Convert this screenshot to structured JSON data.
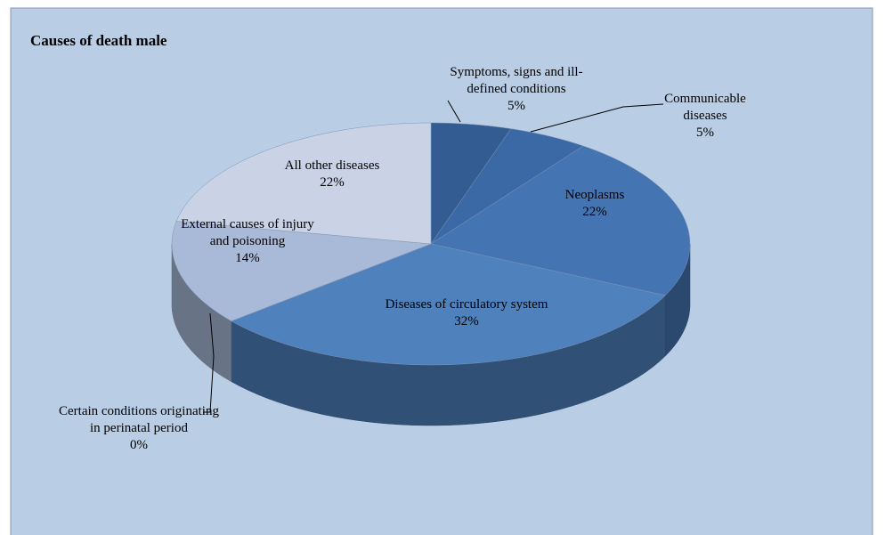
{
  "chart_data": {
    "type": "pie3d",
    "title": "Causes of death male",
    "categories": [
      "Symptoms, signs and ill-defined conditions",
      "Communicable diseases",
      "Neoplasms",
      "Diseases of circulatory system",
      "Certain conditions originating in perinatal period",
      "External causes of injury and poisoning",
      "All other diseases"
    ],
    "values": [
      5,
      5,
      22,
      32,
      0,
      14,
      22
    ],
    "value_labels": [
      "5%",
      "5%",
      "22%",
      "32%",
      "0%",
      "14%",
      "22%"
    ],
    "colors": [
      "#335d92",
      "#3b69a5",
      "#4574b2",
      "#4f81bd",
      "#9fb0cc",
      "#a9b9d8",
      "#cad3e6"
    ]
  }
}
